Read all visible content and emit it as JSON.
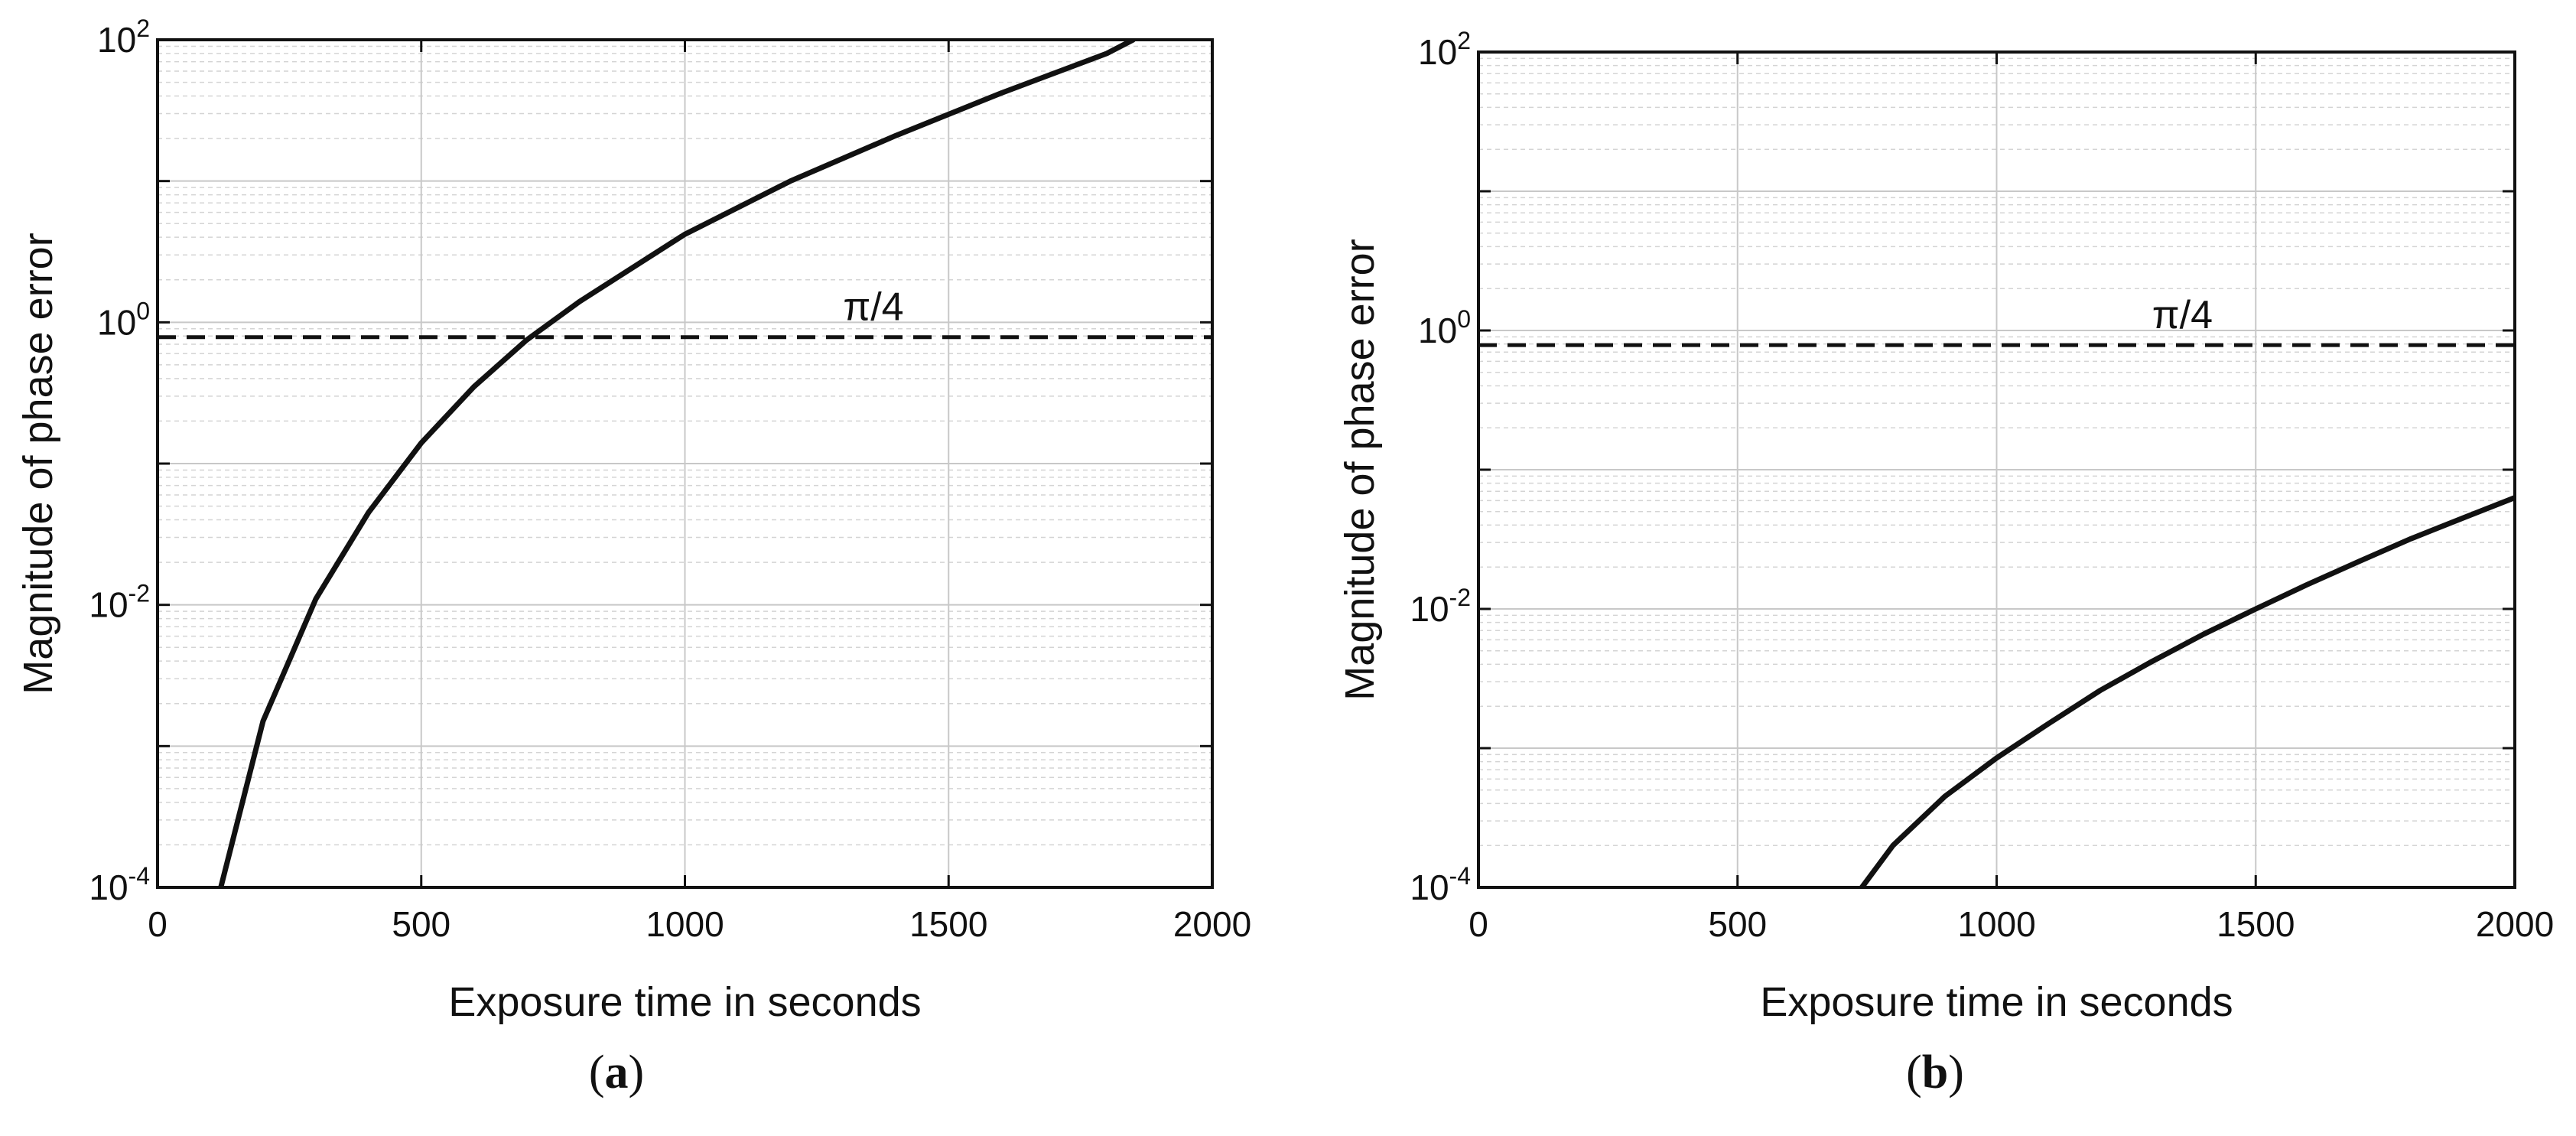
{
  "chart_data": [
    {
      "type": "line",
      "panel_label": "(a)",
      "panel_letter": "a",
      "xlabel": "Exposure time in seconds",
      "ylabel": "Magnitude of phase error",
      "xlim": [
        0,
        2000
      ],
      "ylim": [
        0.0001,
        100
      ],
      "yscale": "log",
      "grid": true,
      "x_ticks": [
        "0",
        "500",
        "1000",
        "1500",
        "2000"
      ],
      "y_ticks": [
        {
          "base": "10",
          "exp": "-4"
        },
        {
          "base": "10",
          "exp": "-2"
        },
        {
          "base": "10",
          "exp": "0"
        },
        {
          "base": "10",
          "exp": "2"
        }
      ],
      "reference_line": {
        "label": "π/4",
        "y": 0.785,
        "style": "dashed"
      },
      "series": [
        {
          "style": "solid",
          "x": [
            120,
            200,
            300,
            400,
            500,
            600,
            700,
            800,
            1000,
            1200,
            1400,
            1600,
            1800,
            1850
          ],
          "y": [
            0.0001,
            0.0015,
            0.011,
            0.045,
            0.14,
            0.35,
            0.75,
            1.4,
            4.2,
            10,
            21,
            42,
            80,
            100
          ]
        }
      ]
    },
    {
      "type": "line",
      "panel_label": "(b)",
      "panel_letter": "b",
      "xlabel": "Exposure time in seconds",
      "ylabel": "Magnitude of phase error",
      "xlim": [
        0,
        2000
      ],
      "ylim": [
        0.0001,
        100
      ],
      "yscale": "log",
      "grid": true,
      "x_ticks": [
        "0",
        "500",
        "1000",
        "1500",
        "2000"
      ],
      "y_ticks": [
        {
          "base": "10",
          "exp": "-4"
        },
        {
          "base": "10",
          "exp": "-2"
        },
        {
          "base": "10",
          "exp": "0"
        },
        {
          "base": "10",
          "exp": "2"
        }
      ],
      "reference_line": {
        "label": "π/4",
        "y": 0.785,
        "style": "dashed"
      },
      "series": [
        {
          "style": "solid",
          "x": [
            740,
            800,
            900,
            1000,
            1100,
            1200,
            1300,
            1400,
            1500,
            1600,
            1700,
            1800,
            1900,
            2000
          ],
          "y": [
            0.0001,
            0.0002,
            0.00045,
            0.00085,
            0.0015,
            0.0026,
            0.0042,
            0.0066,
            0.01,
            0.015,
            0.022,
            0.032,
            0.045,
            0.063
          ]
        }
      ]
    }
  ]
}
